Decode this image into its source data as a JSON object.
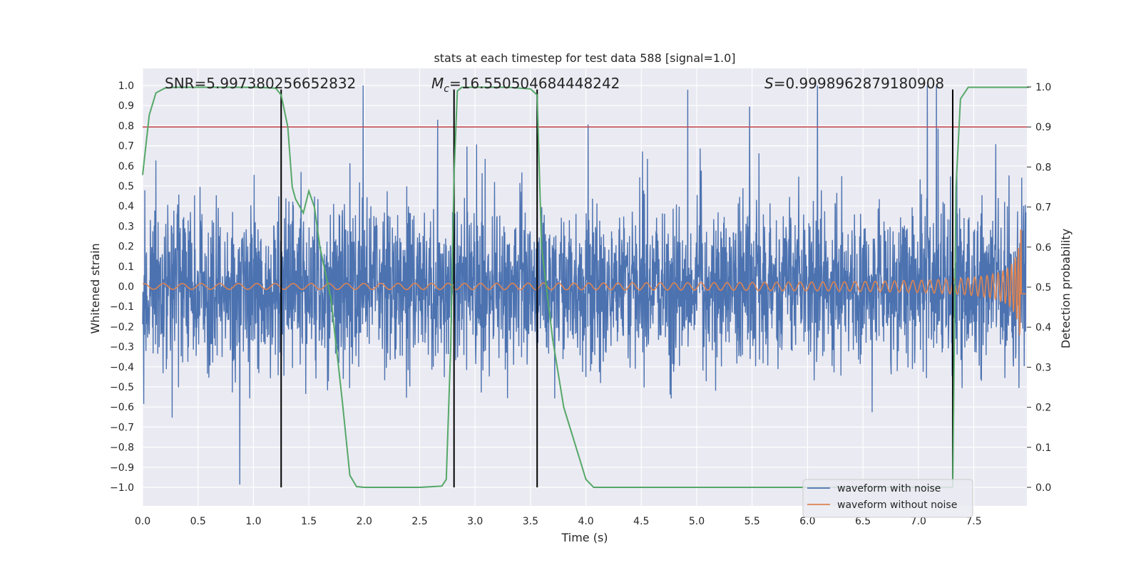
{
  "chart_data": {
    "type": "line",
    "title": "stats at each timestep for test data 588 [signal=1.0]",
    "xlabel": "Time (s)",
    "ylabel": "Whitened strain",
    "y2label": "Detection probability",
    "xlim": [
      0.0,
      8.0
    ],
    "ylim": [
      -1.1,
      1.1
    ],
    "y2lim": [
      -0.05,
      1.05
    ],
    "xticks": [
      "0.0",
      "0.5",
      "1.0",
      "1.5",
      "2.0",
      "2.5",
      "3.0",
      "3.5",
      "4.0",
      "4.5",
      "5.0",
      "5.5",
      "6.0",
      "6.5",
      "7.0",
      "7.5"
    ],
    "yticks": [
      "1.0",
      "0.9",
      "0.8",
      "0.7",
      "0.6",
      "0.5",
      "0.4",
      "0.3",
      "0.2",
      "0.1",
      "0.0",
      "−0.1",
      "−0.2",
      "−0.3",
      "−0.4",
      "−0.5",
      "−0.6",
      "−0.7",
      "−0.8",
      "−0.9",
      "−1.0"
    ],
    "y2ticks": [
      "1.0",
      "0.9",
      "0.8",
      "0.7",
      "0.6",
      "0.5",
      "0.4",
      "0.3",
      "0.2",
      "0.1",
      "0.0"
    ],
    "annotations": {
      "snr_label": "SNR=5.997380256652832",
      "mc_prefix": "M",
      "mc_sub": "c",
      "mc_value": "=16.550504684448242",
      "s_prefix": "S",
      "s_value": "=0.9998962879180908"
    },
    "threshold_line": {
      "axis": "y2",
      "value": 0.9,
      "color": "#c44e52"
    },
    "vertical_markers": {
      "times": [
        1.25,
        2.81,
        3.56,
        7.31
      ],
      "ymin": -1.0,
      "ymax": 0.98,
      "color": "#000000"
    },
    "series": [
      {
        "name": "waveform with noise",
        "color": "#4c72b0",
        "kind": "noise",
        "approx_std": 0.2,
        "range": [
          -1.0,
          1.0
        ]
      },
      {
        "name": "waveform without noise",
        "color": "#dd8452",
        "kind": "chirp",
        "amplitude_start": 0.01,
        "amplitude_end": 0.38,
        "merger_time": 7.95
      },
      {
        "name": "detection probability",
        "color": "#55a868",
        "axis": "y2",
        "x": [
          0.0,
          0.06,
          0.12,
          0.2,
          0.3,
          0.5,
          1.0,
          1.2,
          1.25,
          1.31,
          1.35,
          1.38,
          1.41,
          1.45,
          1.5,
          1.55,
          1.6,
          1.7,
          1.8,
          1.87,
          1.93,
          2.0,
          2.5,
          2.7,
          2.74,
          2.78,
          2.81,
          2.84,
          2.88,
          3.0,
          3.3,
          3.5,
          3.56,
          3.6,
          3.7,
          3.8,
          3.9,
          4.0,
          4.07,
          4.2,
          5.0,
          6.0,
          6.5,
          7.0,
          7.3,
          7.31,
          7.34,
          7.38,
          7.45,
          8.0
        ],
        "values": [
          0.78,
          0.93,
          0.985,
          0.997,
          0.999,
          0.999,
          0.999,
          0.997,
          0.98,
          0.9,
          0.75,
          0.72,
          0.705,
          0.685,
          0.74,
          0.7,
          0.6,
          0.47,
          0.22,
          0.03,
          0.002,
          0.0,
          0.0,
          0.003,
          0.02,
          0.35,
          0.78,
          0.99,
          0.999,
          0.999,
          0.999,
          0.995,
          0.98,
          0.6,
          0.37,
          0.2,
          0.11,
          0.02,
          0.0,
          0.0,
          0.0,
          0.0,
          0.0,
          0.0,
          0.0,
          0.0,
          0.75,
          0.97,
          0.999,
          0.999
        ]
      }
    ],
    "legend": {
      "placement": "lower-right",
      "entries": [
        "waveform with noise",
        "waveform without noise"
      ]
    }
  }
}
